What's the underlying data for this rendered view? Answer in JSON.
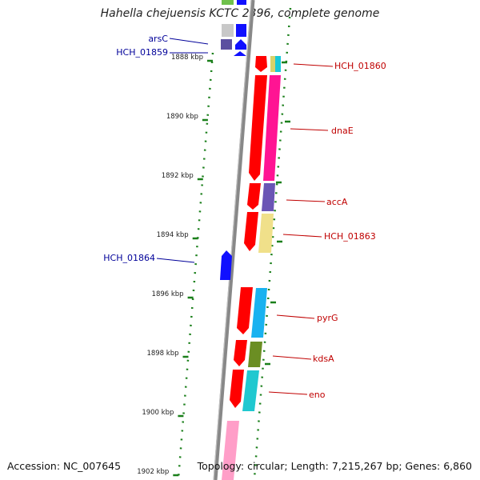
{
  "title": "Hahella chejuensis KCTC 2396, complete genome",
  "accession": "Accession: NC_007645",
  "topology": "Topology: circular; Length: 7,215,267 bp; Genes: 6,860",
  "colors": {
    "backbone": "#8a8a8a",
    "tick": "#1a7f1a",
    "forward_label": "#c00000",
    "reverse_label": "#000099"
  },
  "ticks": [
    "1888 kbp",
    "1890 kbp",
    "1892 kbp",
    "1894 kbp",
    "1896 kbp",
    "1898 kbp",
    "1900 kbp",
    "1902 kbp"
  ],
  "forward_genes": [
    {
      "label": "HCH_01860",
      "start_kbp": 1888.0,
      "end_kbp": 1888.6
    },
    {
      "label": "dnaE",
      "start_kbp": 1888.6,
      "end_kbp": 1892.1
    },
    {
      "label": "accA",
      "start_kbp": 1892.2,
      "end_kbp": 1893.1
    },
    {
      "label": "HCH_01863",
      "start_kbp": 1893.2,
      "end_kbp": 1894.6
    },
    {
      "label": "pyrG",
      "start_kbp": 1896.1,
      "end_kbp": 1897.7
    },
    {
      "label": "kdsA",
      "start_kbp": 1897.8,
      "end_kbp": 1898.7
    },
    {
      "label": "eno",
      "start_kbp": 1898.8,
      "end_kbp": 1900.2
    }
  ],
  "reverse_genes": [
    {
      "label": "arsC"
    },
    {
      "label": "HCH_01859"
    },
    {
      "label": "HCH_01864"
    }
  ]
}
